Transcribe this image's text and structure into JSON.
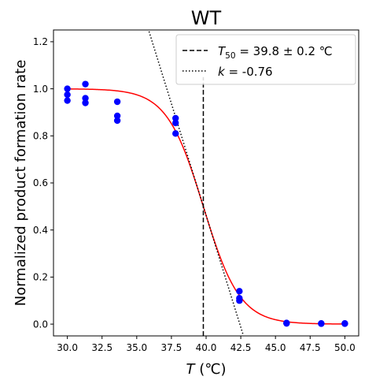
{
  "chart_data": {
    "type": "scatter",
    "title": "WT",
    "xlabel_italic": "T",
    "xlabel_rest": " (℃)",
    "ylabel": "Normalized product formation rate",
    "xlim": [
      29.0,
      51.0
    ],
    "ylim": [
      -0.05,
      1.25
    ],
    "xticks": [
      30.0,
      32.5,
      35.0,
      37.5,
      40.0,
      42.5,
      45.0,
      47.5,
      50.0
    ],
    "xtick_labels": [
      "30.0",
      "32.5",
      "35.0",
      "37.5",
      "40.0",
      "42.5",
      "45.0",
      "47.5",
      "50.0"
    ],
    "yticks": [
      0.0,
      0.2,
      0.4,
      0.6,
      0.8,
      1.0,
      1.2
    ],
    "ytick_labels": [
      "0.0",
      "0.2",
      "0.4",
      "0.6",
      "0.8",
      "1.0",
      "1.2"
    ],
    "grid": false,
    "legend_position": "top-right",
    "points": [
      [
        30.0,
        1.0
      ],
      [
        30.0,
        0.975
      ],
      [
        30.0,
        0.95
      ],
      [
        31.3,
        1.02
      ],
      [
        31.3,
        0.96
      ],
      [
        31.3,
        0.94
      ],
      [
        33.6,
        0.945
      ],
      [
        33.6,
        0.885
      ],
      [
        33.6,
        0.865
      ],
      [
        37.8,
        0.875
      ],
      [
        37.8,
        0.855
      ],
      [
        37.8,
        0.81
      ],
      [
        42.4,
        0.14
      ],
      [
        42.4,
        0.11
      ],
      [
        42.4,
        0.1
      ],
      [
        45.8,
        0.005
      ],
      [
        45.8,
        0.003
      ],
      [
        48.3,
        0.003
      ],
      [
        48.3,
        0.002
      ],
      [
        50.0,
        0.003
      ],
      [
        50.0,
        0.002
      ]
    ],
    "fit": {
      "t50": 39.8,
      "k": -0.76,
      "upper": 1.0,
      "lower": 0.0
    },
    "tangent": {
      "t50": 39.8,
      "y_at_t50": 0.5,
      "k": -0.76
    },
    "vline": {
      "x": 39.8,
      "y0": -0.05,
      "y1": 1.05
    },
    "legend": [
      {
        "pre": "",
        "italic": "T",
        "sub": "50",
        "post": " = 39.8 ± 0.2 ℃",
        "style": "dashed"
      },
      {
        "pre": "",
        "italic": "k",
        "sub": "",
        "post": " = -0.76",
        "style": "dotted"
      }
    ],
    "colors": {
      "points": "#0000ff",
      "fit": "#ff0000",
      "lines": "#000000"
    }
  }
}
